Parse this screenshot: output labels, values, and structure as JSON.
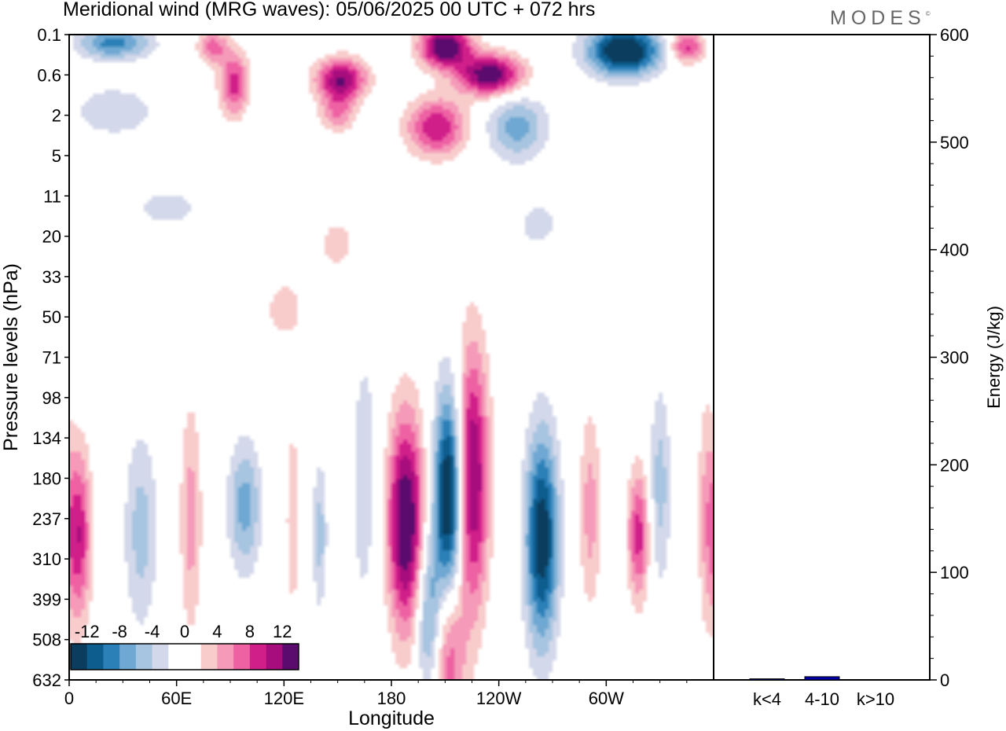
{
  "header": {
    "title": "Meridional wind (MRG waves):  05/06/2025  00 UTC  + 072 hrs",
    "brand": "MODES",
    "brand_mark": "©"
  },
  "colors": {
    "scale": [
      "#0b3d5e",
      "#0d5d8f",
      "#2c80b8",
      "#6fa8d2",
      "#a7c4e0",
      "#d3d8ea",
      "#ffffff",
      "#ffffff",
      "#f9cccc",
      "#f59ab8",
      "#ee62a3",
      "#d11f8a",
      "#a80d7e",
      "#5b0b6e"
    ],
    "bar": "#0000aa"
  },
  "chart_data": [
    {
      "type": "heatmap",
      "title": "Meridional wind (MRG waves):  05/06/2025  00 UTC  + 072 hrs",
      "xlabel": "Longitude",
      "ylabel": "Pressure levels (hPa)",
      "x_ticks": [
        "0",
        "60E",
        "120E",
        "180",
        "120W",
        "60W"
      ],
      "x_tick_values": [
        0,
        60,
        120,
        180,
        240,
        300
      ],
      "x_range": [
        0,
        360
      ],
      "y_ticks": [
        "0.1",
        "0.6",
        "2",
        "5",
        "11",
        "20",
        "33",
        "50",
        "71",
        "98",
        "134",
        "180",
        "237",
        "310",
        "399",
        "508",
        "632"
      ],
      "colorbar": {
        "labels": [
          "-12",
          "-8",
          "-4",
          "0",
          "4",
          "8",
          "12"
        ],
        "levels": [
          -14,
          -12,
          -10,
          -8,
          -6,
          -4,
          -2,
          0,
          2,
          4,
          6,
          8,
          10,
          12,
          14
        ]
      },
      "features": [
        {
          "lon": 5,
          "level": 12.4,
          "value": 10,
          "lon_width": 7,
          "level_width": 2.1
        },
        {
          "lon": 40,
          "level": 12.3,
          "value": -5,
          "lon_width": 9,
          "level_width": 2.4
        },
        {
          "lon": 68,
          "level": 12.0,
          "value": 5,
          "lon_width": 6,
          "level_width": 2.8
        },
        {
          "lon": 98,
          "level": 11.7,
          "value": -7,
          "lon_width": 9,
          "level_width": 1.6
        },
        {
          "lon": 125,
          "level": 12.0,
          "value": 3,
          "lon_width": 5,
          "level_width": 3.0
        },
        {
          "lon": 140,
          "level": 12.4,
          "value": -5,
          "lon_width": 4,
          "level_width": 1.8
        },
        {
          "lon": 165,
          "level": 11.0,
          "value": -3,
          "lon_width": 9,
          "level_width": 4.0
        },
        {
          "lon": 188,
          "level": 12.1,
          "value": 15,
          "lon_width": 10,
          "level_width": 2.6
        },
        {
          "lon": 212,
          "level": 11.5,
          "value": -16,
          "lon_width": 8,
          "level_width": 2.6
        },
        {
          "lon": 201,
          "level": 14.4,
          "value": -8,
          "lon_width": 7,
          "level_width": 2.0
        },
        {
          "lon": 225,
          "level": 11.0,
          "value": 13,
          "lon_width": 9,
          "level_width": 3.2
        },
        {
          "lon": 212,
          "level": 15.3,
          "value": 8,
          "lon_width": 9,
          "level_width": 2.0
        },
        {
          "lon": 264,
          "level": 12.5,
          "value": -14,
          "lon_width": 9,
          "level_width": 2.6
        },
        {
          "lon": 291,
          "level": 11.8,
          "value": 5,
          "lon_width": 6,
          "level_width": 2.4
        },
        {
          "lon": 318,
          "level": 12.4,
          "value": 9,
          "lon_width": 6,
          "level_width": 1.6
        },
        {
          "lon": 330,
          "level": 11.2,
          "value": -5,
          "lon_width": 6,
          "level_width": 2.4
        },
        {
          "lon": 356,
          "level": 11.8,
          "value": 4,
          "lon_width": 5,
          "level_width": 3.0
        },
        {
          "lon": 120,
          "level": 6.8,
          "value": 3,
          "lon_width": 12,
          "level_width": 0.8
        },
        {
          "lon": 150,
          "level": 5.2,
          "value": 3,
          "lon_width": 12,
          "level_width": 0.7
        },
        {
          "lon": 262,
          "level": 4.7,
          "value": -3,
          "lon_width": 13,
          "level_width": 0.6
        },
        {
          "lon": 25,
          "level": 0.2,
          "value": -9,
          "lon_width": 20,
          "level_width": 0.4
        },
        {
          "lon": 80,
          "level": 0.3,
          "value": 7,
          "lon_width": 8,
          "level_width": 0.4
        },
        {
          "lon": 92,
          "level": 1.2,
          "value": 9,
          "lon_width": 8,
          "level_width": 0.8
        },
        {
          "lon": 152,
          "level": 1.1,
          "value": 12,
          "lon_width": 14,
          "level_width": 0.5
        },
        {
          "lon": 150,
          "level": 1.9,
          "value": 6,
          "lon_width": 10,
          "level_width": 0.5
        },
        {
          "lon": 210,
          "level": 0.3,
          "value": 15,
          "lon_width": 14,
          "level_width": 0.5
        },
        {
          "lon": 235,
          "level": 1.0,
          "value": 14,
          "lon_width": 18,
          "level_width": 0.5
        },
        {
          "lon": 205,
          "level": 2.3,
          "value": 10,
          "lon_width": 16,
          "level_width": 0.7
        },
        {
          "lon": 250,
          "level": 2.3,
          "value": -7,
          "lon_width": 16,
          "level_width": 0.8
        },
        {
          "lon": 310,
          "level": 0.4,
          "value": -16,
          "lon_width": 20,
          "level_width": 0.6
        },
        {
          "lon": 345,
          "level": 0.3,
          "value": 9,
          "lon_width": 10,
          "level_width": 0.4
        },
        {
          "lon": 25,
          "level": 1.9,
          "value": -4,
          "lon_width": 22,
          "level_width": 0.6
        },
        {
          "lon": 55,
          "level": 4.3,
          "value": -3,
          "lon_width": 20,
          "level_width": 0.5
        }
      ]
    },
    {
      "type": "bar",
      "categories": [
        "k<4",
        "4-10",
        "k>10"
      ],
      "values": [
        1,
        3,
        0
      ],
      "ylabel": "Energy (J/kg)",
      "ylim": [
        0,
        600
      ],
      "y_ticks": [
        0,
        100,
        200,
        300,
        400,
        500,
        600
      ]
    }
  ]
}
